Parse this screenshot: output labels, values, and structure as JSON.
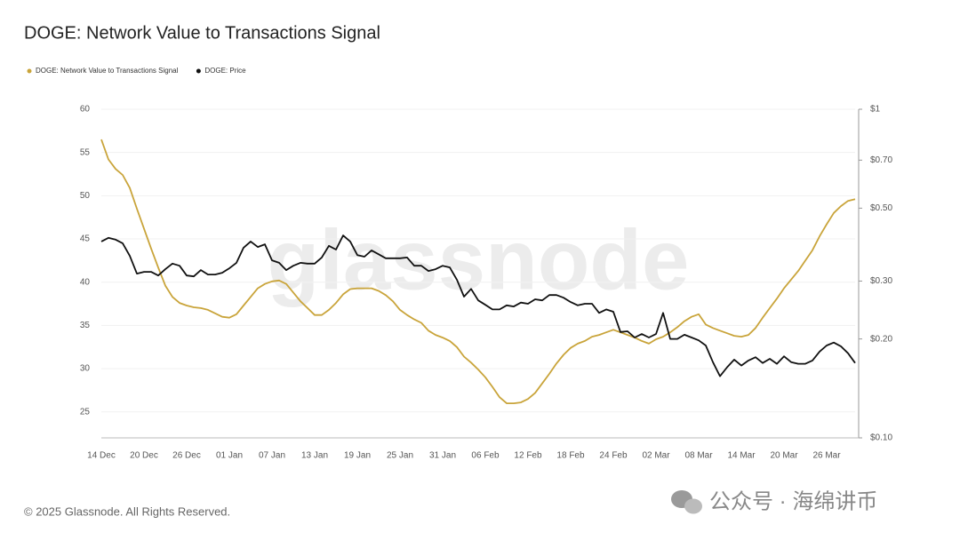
{
  "chart_data": {
    "type": "line",
    "title": "DOGE: Network Value to Transactions Signal",
    "footer": "© 2025 Glassnode. All Rights Reserved.",
    "watermark": "glassnode",
    "overlay_text": "公众号 · 海绵讲币",
    "categories": [
      "14 Dec",
      null,
      null,
      null,
      null,
      null,
      "20 Dec",
      null,
      null,
      null,
      null,
      null,
      "26 Dec",
      null,
      null,
      null,
      null,
      null,
      "01 Jan",
      null,
      null,
      null,
      null,
      null,
      "07 Jan",
      null,
      null,
      null,
      null,
      null,
      "13 Jan",
      null,
      null,
      null,
      null,
      null,
      "19 Jan",
      null,
      null,
      null,
      null,
      null,
      "25 Jan",
      null,
      null,
      null,
      null,
      null,
      "31 Jan",
      null,
      null,
      null,
      null,
      null,
      "06 Feb",
      null,
      null,
      null,
      null,
      null,
      "12 Feb",
      null,
      null,
      null,
      null,
      null,
      "18 Feb",
      null,
      null,
      null,
      null,
      null,
      "24 Feb",
      null,
      null,
      null,
      null,
      null,
      "02 Mar",
      null,
      null,
      null,
      null,
      null,
      "08 Mar",
      null,
      null,
      null,
      null,
      null,
      "14 Mar",
      null,
      null,
      null,
      null,
      null,
      "20 Mar",
      null,
      null,
      null,
      null,
      null,
      "26 Mar",
      null,
      null,
      null,
      null
    ],
    "series": [
      {
        "name": "DOGE: Network Value to Transactions Signal",
        "color": "#c9a43a",
        "axis": "y",
        "values": [
          56.5,
          54.2,
          53.1,
          52.4,
          50.9,
          48.5,
          46.2,
          43.9,
          41.7,
          39.6,
          38.3,
          37.6,
          37.3,
          37.1,
          37.0,
          36.8,
          36.4,
          36.0,
          35.9,
          36.3,
          37.3,
          38.3,
          39.3,
          39.8,
          40.1,
          40.2,
          39.8,
          38.8,
          37.8,
          37.0,
          36.2,
          36.2,
          36.8,
          37.6,
          38.6,
          39.2,
          39.3,
          39.3,
          39.3,
          39.0,
          38.5,
          37.8,
          36.8,
          36.2,
          35.7,
          35.3,
          34.4,
          33.9,
          33.6,
          33.2,
          32.5,
          31.4,
          30.7,
          29.9,
          29.0,
          27.9,
          26.7,
          26.0,
          26.0,
          26.1,
          26.5,
          27.2,
          28.3,
          29.4,
          30.6,
          31.6,
          32.4,
          32.9,
          33.2,
          33.7,
          33.9,
          34.2,
          34.5,
          34.2,
          33.9,
          33.6,
          33.2,
          32.9,
          33.4,
          33.7,
          34.2,
          34.8,
          35.5,
          36.0,
          36.3,
          35.1,
          34.7,
          34.4,
          34.1,
          33.8,
          33.7,
          33.9,
          34.7,
          35.9,
          37.0,
          38.1,
          39.3,
          40.3,
          41.3,
          42.5,
          43.7,
          45.3,
          46.7,
          48.0,
          48.8,
          49.4,
          49.6
        ]
      },
      {
        "name": "DOGE: Price",
        "color": "#111111",
        "axis": "y2",
        "values": [
          0.396,
          0.406,
          0.401,
          0.391,
          0.358,
          0.316,
          0.32,
          0.32,
          0.312,
          0.326,
          0.339,
          0.334,
          0.312,
          0.31,
          0.324,
          0.314,
          0.314,
          0.318,
          0.328,
          0.341,
          0.379,
          0.396,
          0.381,
          0.388,
          0.347,
          0.341,
          0.324,
          0.334,
          0.341,
          0.339,
          0.339,
          0.354,
          0.384,
          0.374,
          0.413,
          0.396,
          0.36,
          0.356,
          0.372,
          0.362,
          0.352,
          0.352,
          0.352,
          0.354,
          0.334,
          0.334,
          0.322,
          0.326,
          0.334,
          0.33,
          0.303,
          0.269,
          0.284,
          0.262,
          0.254,
          0.246,
          0.246,
          0.253,
          0.251,
          0.258,
          0.256,
          0.264,
          0.262,
          0.272,
          0.272,
          0.267,
          0.259,
          0.253,
          0.256,
          0.256,
          0.24,
          0.246,
          0.242,
          0.21,
          0.211,
          0.202,
          0.207,
          0.202,
          0.207,
          0.24,
          0.2,
          0.2,
          0.206,
          0.202,
          0.198,
          0.191,
          0.17,
          0.154,
          0.164,
          0.173,
          0.166,
          0.172,
          0.176,
          0.169,
          0.174,
          0.168,
          0.177,
          0.17,
          0.168,
          0.168,
          0.172,
          0.183,
          0.191,
          0.195,
          0.19,
          0.181,
          0.169
        ]
      }
    ],
    "ylim": [
      22,
      60
    ],
    "yticks": [
      25,
      30,
      35,
      40,
      45,
      50,
      55,
      60
    ],
    "y2lim": [
      0.1,
      1
    ],
    "y2scale": "log",
    "y2ticks": [
      {
        "value": 0.1,
        "label": "$0.10"
      },
      {
        "value": 0.2,
        "label": "$0.20"
      },
      {
        "value": 0.3,
        "label": "$0.30"
      },
      {
        "value": 0.5,
        "label": "$0.50"
      },
      {
        "value": 0.7,
        "label": "$0.70"
      },
      {
        "value": 1,
        "label": "$1"
      }
    ],
    "grid": true
  }
}
